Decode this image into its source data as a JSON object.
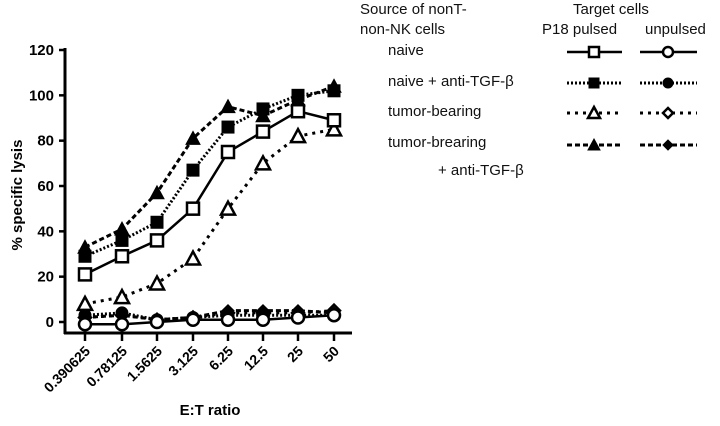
{
  "chart_data": {
    "type": "line",
    "title": "",
    "xlabel": "E:T ratio",
    "ylabel": "% specific lysis",
    "ylim": [
      0,
      120
    ],
    "yticks": [
      0,
      20,
      40,
      60,
      80,
      100,
      120
    ],
    "categories": [
      "0.390625",
      "0.78125",
      "1.5625",
      "3.125",
      "6.25",
      "12.5",
      "25",
      "50"
    ],
    "grid": false,
    "legend_position": "right",
    "series": [
      {
        "name": "naive, P18 pulsed",
        "source": "naive",
        "target": "P18 pulsed",
        "marker": "square-open",
        "line": "solid",
        "values": [
          21,
          29,
          36,
          50,
          75,
          84,
          93,
          89
        ]
      },
      {
        "name": "naive + anti-TGF-β, P18 pulsed",
        "source": "naive + anti-TGF-β",
        "target": "P18 pulsed",
        "marker": "square-filled",
        "line": "dotted",
        "values": [
          29,
          36,
          44,
          67,
          86,
          94,
          100,
          102
        ]
      },
      {
        "name": "tumor-bearing, P18 pulsed",
        "source": "tumor-bearing",
        "target": "P18 pulsed",
        "marker": "triangle-open",
        "line": "dotted-sparse",
        "values": [
          8,
          11,
          17,
          28,
          50,
          70,
          82,
          85
        ]
      },
      {
        "name": "tumor-brearing + anti-TGF-β, P18 pulsed",
        "source": "tumor-brearing + anti-TGF-β",
        "target": "P18 pulsed",
        "marker": "triangle-filled",
        "line": "dashed",
        "values": [
          33,
          41,
          57,
          81,
          95,
          91,
          98,
          104
        ]
      },
      {
        "name": "naive, unpulsed",
        "source": "naive",
        "target": "unpulsed",
        "marker": "circle-open",
        "line": "solid",
        "values": [
          -1,
          -1,
          0,
          1,
          1,
          1,
          2,
          3
        ]
      },
      {
        "name": "naive + anti-TGF-β, unpulsed",
        "source": "naive + anti-TGF-β",
        "target": "unpulsed",
        "marker": "circle-filled",
        "line": "dotted",
        "values": [
          3,
          4,
          1,
          2,
          3,
          3,
          3,
          3
        ]
      },
      {
        "name": "tumor-bearing, unpulsed",
        "source": "tumor-bearing",
        "target": "unpulsed",
        "marker": "diamond-open",
        "line": "dotted-sparse",
        "values": [
          2,
          3,
          1,
          2,
          4,
          4,
          4,
          5
        ]
      },
      {
        "name": "tumor-brearing + anti-TGF-β, unpulsed",
        "source": "tumor-brearing + anti-TGF-β",
        "target": "unpulsed",
        "marker": "diamond-filled",
        "line": "dashed",
        "values": [
          2,
          3,
          1,
          2,
          5,
          5,
          5,
          4
        ]
      }
    ]
  },
  "legend": {
    "source_header_line1": "Source of nonT-",
    "source_header_line2": "non-NK cells",
    "target_header": "Target cells",
    "col_p18": "P18 pulsed",
    "col_unpulsed": "unpulsed",
    "rows": [
      {
        "label": "naive",
        "label2": ""
      },
      {
        "label": "naive + anti-TGF-β",
        "label2": ""
      },
      {
        "label": "tumor-bearing",
        "label2": ""
      },
      {
        "label": "tumor-brearing",
        "label2": "+ anti-TGF-β"
      }
    ]
  },
  "colors": {
    "ink": "#000000",
    "background": "#ffffff"
  }
}
